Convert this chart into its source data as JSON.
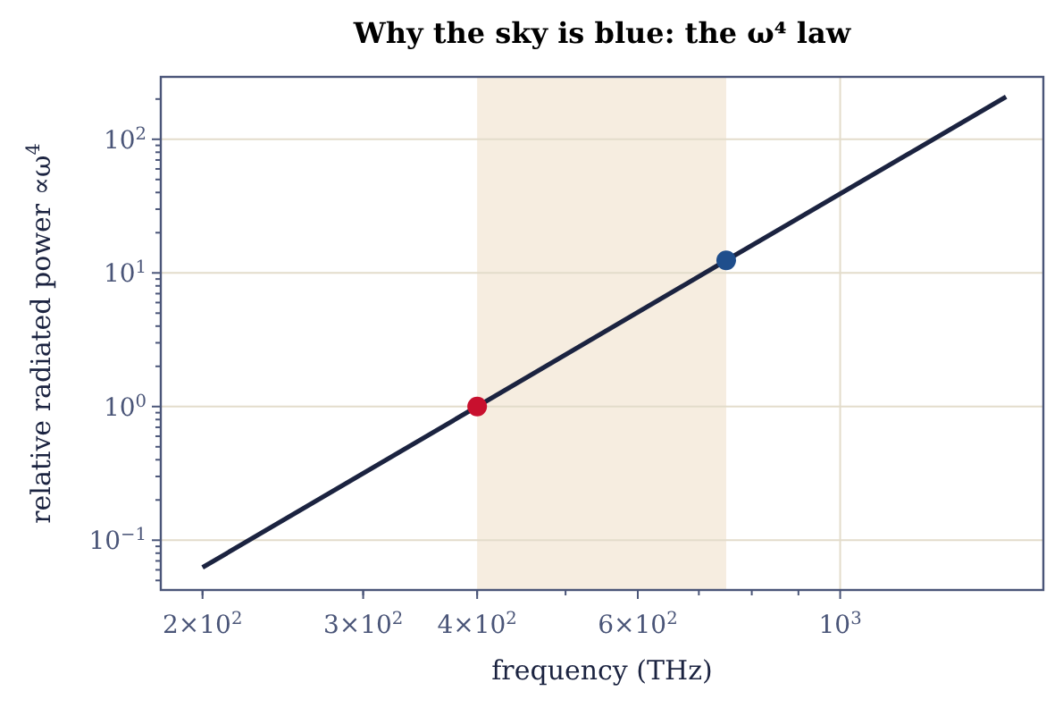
{
  "chart_data": {
    "type": "line",
    "title": "Why the sky is blue: the ω⁴ law",
    "xlabel": "frequency (THz)",
    "ylabel": "relative radiated power  ∝ω$^{4}$",
    "log": "xy",
    "grid": true,
    "xlim": [
      180,
      1670
    ],
    "ylim": [
      0.0424,
      293
    ],
    "xticks": [
      {
        "value": 200,
        "label": "2×10$^{2}$"
      },
      {
        "value": 300,
        "label": "3×10$^{2}$"
      },
      {
        "value": 400,
        "label": "4×10$^{2}$"
      },
      {
        "value": 600,
        "label": "6×10$^{2}$"
      },
      {
        "value": 1000,
        "label": "10$^{3}$"
      }
    ],
    "yticks": [
      {
        "value": 0.1,
        "label": "10$^{−1}$"
      },
      {
        "value": 1,
        "label": "10$^{0}$"
      },
      {
        "value": 10,
        "label": "10$^{1}$"
      },
      {
        "value": 100,
        "label": "10$^{2}$"
      }
    ],
    "bands": [
      {
        "axis": "x",
        "from": 400,
        "to": 750,
        "color": "#f6ede0"
      }
    ],
    "series": [
      {
        "color": "#1b2340",
        "x": [
          200,
          400,
          750,
          1520
        ],
        "values": [
          0.0625,
          1,
          12.4,
          208
        ],
        "marker": "none"
      },
      {
        "type": "scatter",
        "color": "#c8102e",
        "x": [
          400
        ],
        "values": [
          1
        ],
        "marker": "circle"
      },
      {
        "type": "scatter",
        "color": "#1f4e8c",
        "x": [
          750
        ],
        "values": [
          12.4
        ],
        "marker": "circle"
      }
    ]
  }
}
